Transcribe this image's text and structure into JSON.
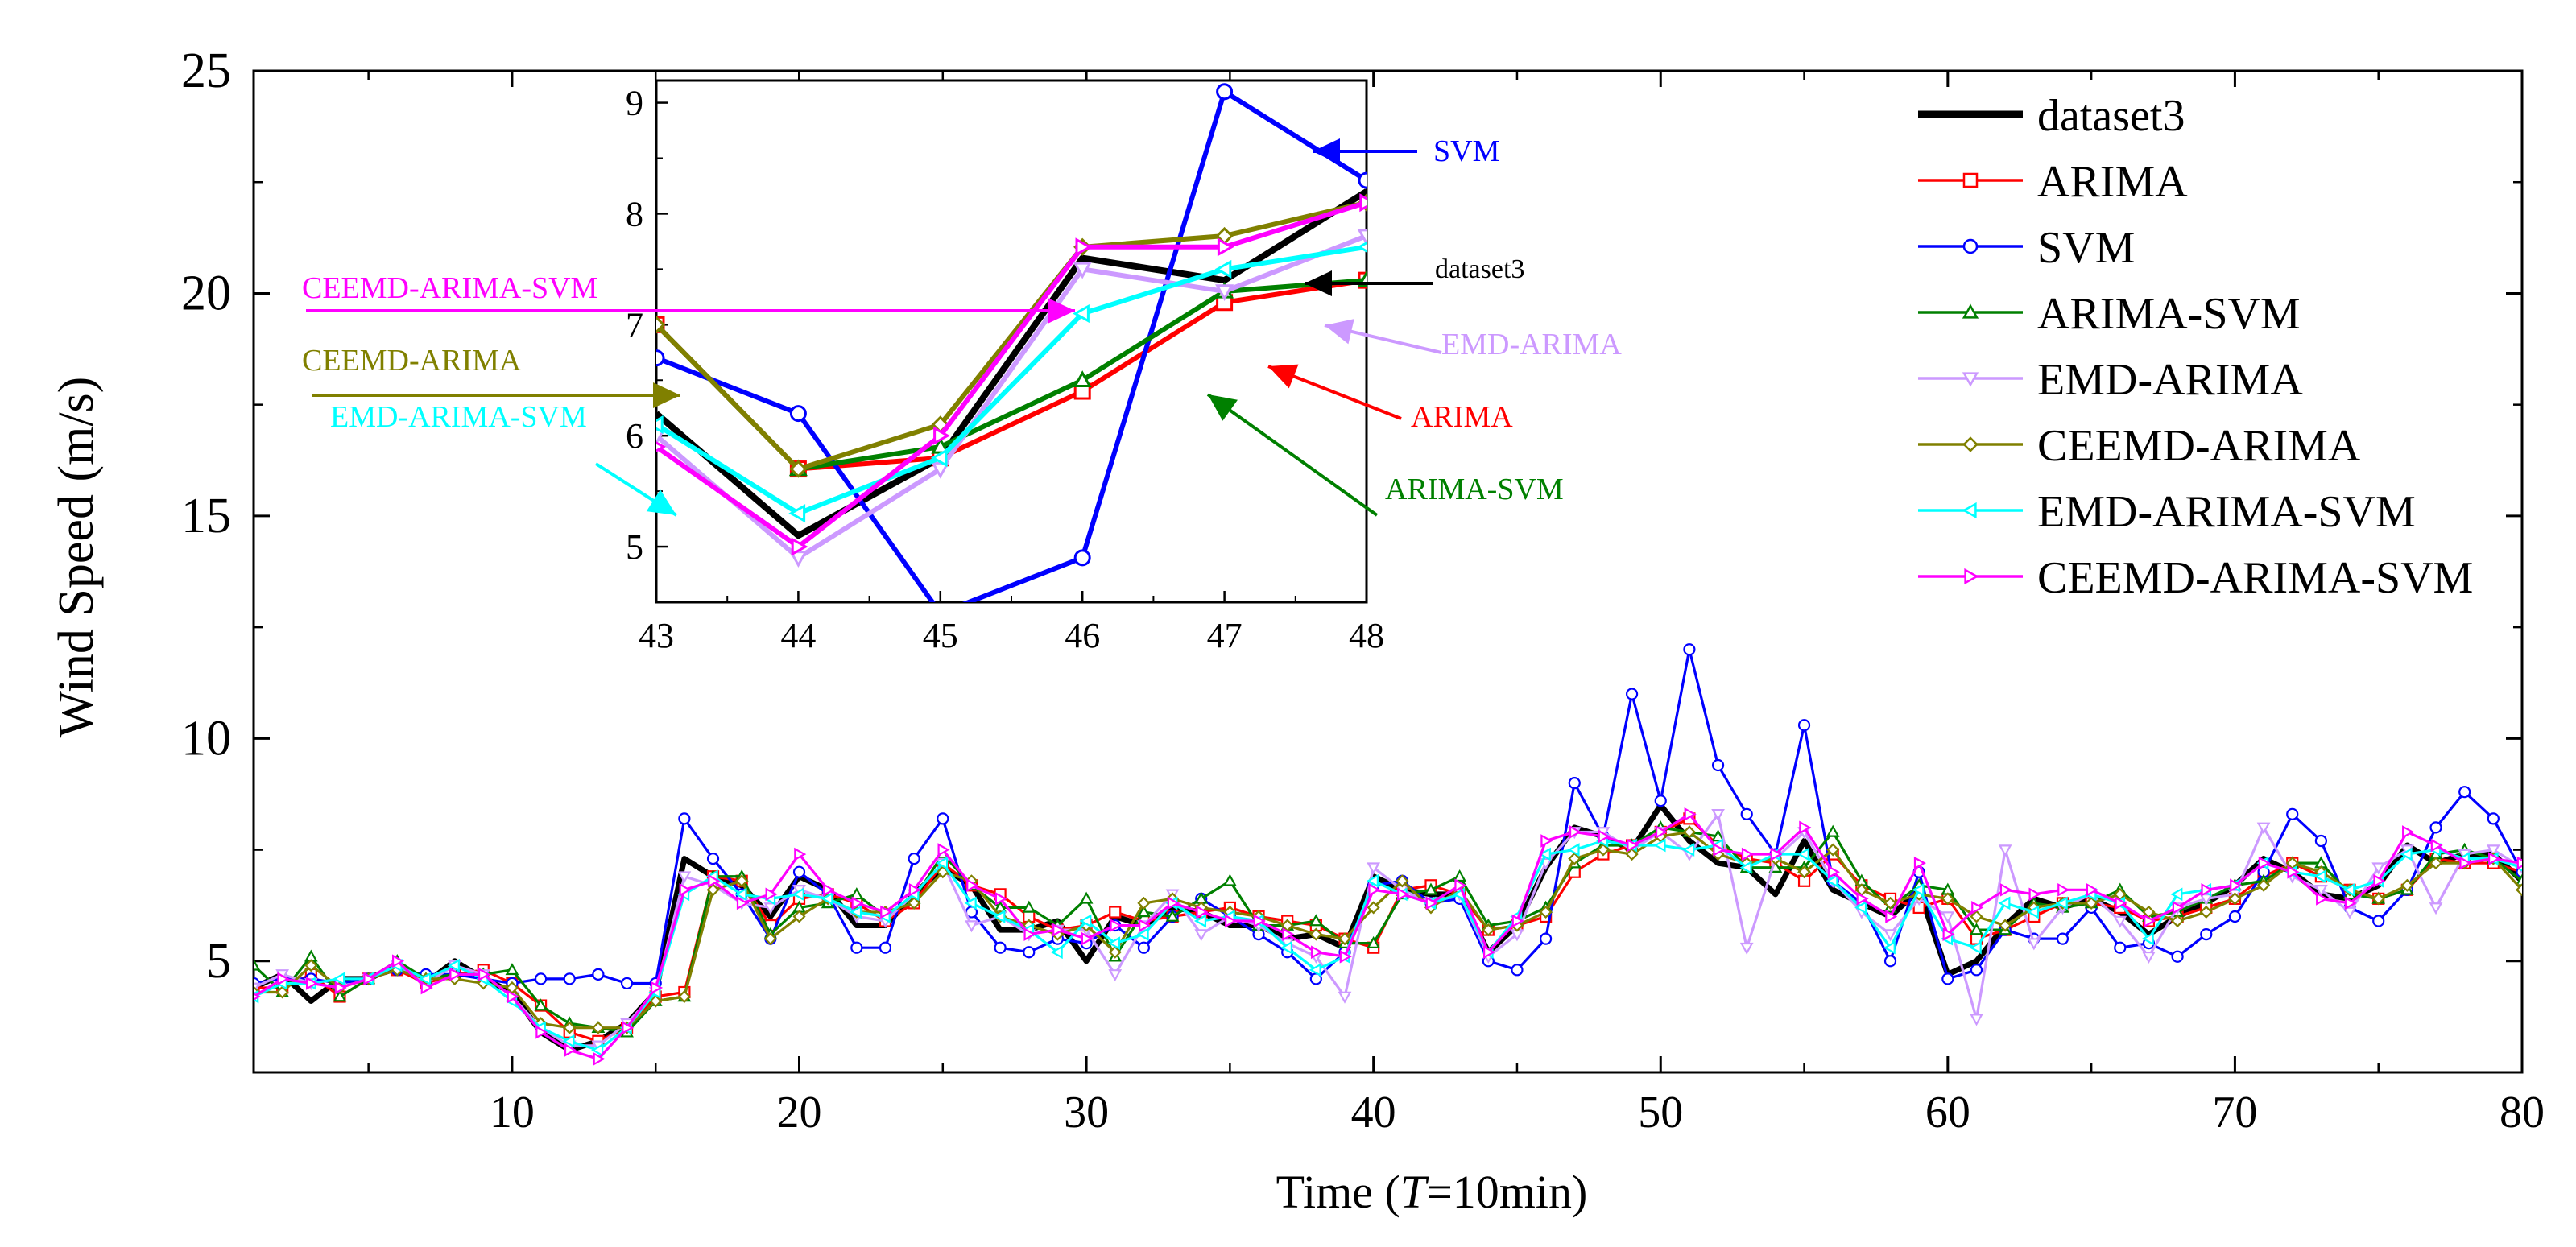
{
  "chart_data": [
    {
      "type": "line",
      "role": "main",
      "xlabel_prefix": "Time (",
      "xlabel_italic": "T",
      "xlabel_suffix": "=10min)",
      "ylabel": "Wind Speed (m/s)",
      "xlim": [
        1,
        80
      ],
      "ylim": [
        2.5,
        25
      ],
      "xticks": [
        10,
        20,
        30,
        40,
        50,
        60,
        70,
        80
      ],
      "yticks": [
        5,
        10,
        15,
        20,
        25
      ],
      "x_start": 1,
      "series": [
        {
          "name": "dataset3",
          "color": "#000000",
          "marker": "none",
          "values": [
            4.4,
            4.7,
            4.1,
            4.6,
            4.6,
            4.9,
            4.5,
            5.0,
            4.6,
            4.3,
            3.4,
            3.0,
            3.2,
            3.6,
            4.3,
            7.3,
            6.9,
            6.7,
            6.0,
            6.9,
            6.6,
            5.8,
            5.8,
            6.5,
            7.1,
            6.7,
            5.7,
            5.7,
            5.9,
            5.0,
            6.0,
            5.8,
            6.2,
            6.1,
            5.8,
            5.8,
            5.5,
            5.6,
            5.3,
            6.9,
            6.6,
            6.5,
            6.5,
            5.2,
            5.8,
            7.1,
            8.0,
            7.8,
            7.5,
            8.5,
            7.7,
            7.2,
            7.1,
            6.5,
            7.7,
            6.6,
            6.3,
            6.0,
            6.6,
            4.7,
            5.0,
            5.8,
            6.4,
            6.2,
            6.4,
            6.1,
            5.6,
            6.0,
            6.3,
            6.7,
            7.3,
            7.0,
            6.5,
            6.4,
            6.7,
            7.6,
            7.2,
            7.4,
            7.4,
            6.8
          ]
        },
        {
          "name": "ARIMA",
          "color": "#ff0000",
          "marker": "square",
          "values": [
            4.4,
            4.4,
            4.7,
            4.2,
            4.6,
            4.8,
            4.5,
            4.7,
            4.8,
            4.5,
            4.0,
            3.4,
            3.2,
            3.5,
            4.2,
            4.3,
            6.9,
            6.8,
            5.8,
            6.4,
            6.5,
            6.3,
            5.9,
            6.3,
            7.2,
            6.7,
            6.5,
            6.0,
            5.7,
            5.8,
            6.1,
            5.9,
            6.0,
            6.1,
            6.2,
            6.0,
            5.9,
            5.8,
            5.5,
            5.3,
            6.6,
            6.7,
            6.5,
            5.7,
            5.8,
            6.0,
            7.0,
            7.4,
            7.6,
            7.9,
            8.2,
            7.6,
            7.3,
            7.2,
            6.8,
            7.4,
            6.7,
            6.4,
            6.2,
            6.4,
            5.5,
            5.7,
            6.0,
            6.3,
            6.3,
            6.2,
            5.9,
            6.0,
            6.2,
            6.4,
            6.9,
            7.2,
            6.9,
            6.6,
            6.4,
            6.6,
            7.3,
            7.2,
            7.2,
            7.0
          ]
        },
        {
          "name": "SVM",
          "color": "#0000ff",
          "marker": "circle",
          "values": [
            4.5,
            4.6,
            4.6,
            4.5,
            4.6,
            4.8,
            4.7,
            4.7,
            4.6,
            4.5,
            4.6,
            4.6,
            4.7,
            4.5,
            4.5,
            8.2,
            7.3,
            6.5,
            5.5,
            7.0,
            6.5,
            5.3,
            5.3,
            7.3,
            8.2,
            6.1,
            5.3,
            5.2,
            5.5,
            5.4,
            5.8,
            5.3,
            6.0,
            6.4,
            6.0,
            5.6,
            5.2,
            4.6,
            5.2,
            6.7,
            6.8,
            6.3,
            6.4,
            5.0,
            4.8,
            5.5,
            9.0,
            7.8,
            11.0,
            8.6,
            12.0,
            9.4,
            8.3,
            7.4,
            10.3,
            6.8,
            6.3,
            5.0,
            7.0,
            4.6,
            4.8,
            5.7,
            5.5,
            5.5,
            6.2,
            5.3,
            5.4,
            5.1,
            5.6,
            6.0,
            7.0,
            8.3,
            7.7,
            6.2,
            5.9,
            6.6,
            8.0,
            8.8,
            8.2,
            7.0
          ]
        },
        {
          "name": "ARIMA-SVM",
          "color": "#008000",
          "marker": "triangle",
          "values": [
            4.9,
            4.3,
            5.1,
            4.2,
            4.6,
            5.0,
            4.6,
            4.7,
            4.7,
            4.8,
            4.0,
            3.6,
            3.5,
            3.4,
            4.1,
            4.2,
            6.9,
            6.9,
            5.6,
            6.2,
            6.3,
            6.5,
            6.0,
            6.4,
            7.4,
            6.7,
            6.2,
            6.2,
            5.8,
            6.4,
            5.1,
            6.1,
            6.0,
            6.4,
            6.8,
            5.8,
            5.8,
            5.9,
            5.4,
            5.4,
            6.5,
            6.6,
            6.9,
            5.8,
            5.9,
            6.2,
            7.2,
            7.6,
            7.6,
            8.0,
            7.9,
            7.8,
            7.1,
            7.1,
            7.1,
            7.9,
            6.8,
            6.2,
            6.7,
            6.6,
            5.7,
            5.7,
            6.3,
            6.2,
            6.3,
            6.6,
            6.0,
            6.1,
            6.4,
            6.7,
            6.8,
            7.2,
            7.2,
            6.5,
            6.4,
            6.6,
            7.4,
            7.5,
            7.3,
            6.8
          ]
        },
        {
          "name": "EMD-ARIMA",
          "color": "#cc99ff",
          "marker": "triangle-down",
          "values": [
            4.4,
            4.7,
            4.5,
            4.4,
            4.6,
            4.9,
            4.5,
            4.9,
            4.7,
            4.2,
            3.5,
            3.1,
            3.1,
            3.6,
            4.3,
            6.9,
            6.7,
            6.3,
            6.2,
            6.6,
            6.4,
            6.0,
            5.9,
            6.5,
            7.2,
            5.8,
            6.0,
            5.6,
            5.7,
            5.7,
            4.7,
            5.8,
            6.5,
            5.6,
            6.0,
            5.8,
            5.4,
            5.1,
            4.2,
            7.1,
            6.6,
            6.3,
            6.5,
            5.1,
            5.6,
            7.2,
            7.9,
            7.9,
            7.5,
            7.9,
            7.4,
            8.3,
            5.3,
            7.3,
            7.9,
            6.8,
            6.1,
            5.6,
            6.4,
            6.0,
            3.7,
            7.5,
            5.4,
            6.2,
            6.5,
            5.9,
            5.1,
            6.2,
            6.4,
            6.5,
            8.0,
            6.9,
            6.6,
            6.1,
            7.1,
            7.5,
            6.2,
            7.4,
            7.5,
            7.1
          ]
        },
        {
          "name": "CEEMD-ARIMA",
          "color": "#808000",
          "marker": "diamond",
          "values": [
            4.3,
            4.3,
            4.9,
            4.4,
            4.6,
            4.8,
            4.6,
            4.6,
            4.5,
            4.4,
            3.6,
            3.5,
            3.5,
            3.5,
            4.1,
            4.2,
            6.6,
            6.8,
            5.5,
            6.0,
            6.4,
            6.1,
            6.1,
            6.3,
            7.0,
            6.8,
            6.0,
            5.8,
            5.6,
            5.8,
            5.2,
            6.3,
            6.4,
            6.2,
            6.1,
            6.0,
            5.8,
            5.6,
            5.5,
            6.2,
            6.8,
            6.2,
            6.6,
            5.7,
            5.8,
            6.1,
            7.3,
            7.5,
            7.4,
            7.8,
            7.9,
            7.4,
            7.2,
            7.3,
            7.0,
            7.5,
            6.6,
            6.3,
            6.5,
            6.4,
            6.0,
            5.8,
            6.2,
            6.3,
            6.3,
            6.5,
            6.1,
            5.9,
            6.1,
            6.4,
            6.7,
            7.2,
            7.0,
            6.6,
            6.4,
            6.7,
            7.2,
            7.2,
            7.3,
            6.6
          ]
        },
        {
          "name": "EMD-ARIMA-SVM",
          "color": "#00ffff",
          "marker": "triangle-left",
          "values": [
            4.2,
            4.5,
            4.5,
            4.6,
            4.6,
            4.9,
            4.6,
            4.9,
            4.6,
            4.1,
            3.5,
            3.2,
            3.0,
            3.5,
            4.3,
            6.5,
            6.9,
            6.5,
            6.4,
            6.5,
            6.4,
            6.1,
            6.0,
            6.5,
            7.2,
            6.3,
            6.0,
            5.7,
            5.2,
            5.9,
            5.4,
            5.6,
            6.3,
            5.9,
            6.0,
            5.9,
            5.3,
            4.8,
            5.1,
            6.8,
            6.5,
            6.3,
            6.5,
            5.2,
            6.0,
            7.4,
            7.5,
            7.7,
            7.6,
            7.6,
            7.5,
            7.6,
            7.1,
            7.4,
            7.4,
            6.8,
            6.2,
            5.3,
            6.6,
            5.5,
            5.3,
            6.3,
            6.1,
            6.3,
            6.5,
            6.3,
            5.5,
            6.5,
            6.6,
            6.7,
            7.2,
            7.0,
            6.9,
            6.6,
            6.8,
            7.4,
            7.5,
            7.3,
            7.3,
            7.1
          ]
        },
        {
          "name": "CEEMD-ARIMA-SVM",
          "color": "#ff00ff",
          "marker": "triangle-right",
          "values": [
            4.2,
            4.6,
            4.5,
            4.4,
            4.6,
            5.0,
            4.4,
            4.7,
            4.7,
            4.2,
            3.4,
            3.0,
            2.8,
            3.5,
            4.4,
            6.6,
            6.8,
            6.3,
            6.5,
            7.4,
            6.6,
            6.3,
            6.1,
            6.6,
            7.5,
            6.7,
            6.4,
            5.6,
            5.7,
            5.5,
            5.8,
            5.8,
            6.3,
            6.1,
            5.9,
            5.9,
            5.6,
            5.2,
            5.1,
            6.6,
            6.5,
            6.3,
            6.7,
            5.2,
            5.9,
            7.7,
            7.9,
            7.8,
            7.6,
            7.9,
            8.3,
            7.5,
            7.4,
            7.4,
            8.0,
            7.0,
            6.4,
            6.0,
            7.2,
            5.6,
            6.2,
            6.6,
            6.5,
            6.6,
            6.6,
            6.3,
            5.9,
            6.2,
            6.6,
            6.7,
            7.2,
            7.0,
            6.4,
            6.3,
            6.8,
            7.9,
            7.6,
            7.2,
            7.3,
            7.2
          ]
        }
      ]
    },
    {
      "type": "line",
      "role": "inset",
      "xlim": [
        43,
        48
      ],
      "ylim": [
        4.5,
        9.2
      ],
      "xticks": [
        43,
        44,
        45,
        46,
        47,
        48
      ],
      "yticks": [
        5,
        6,
        7,
        8,
        9
      ],
      "x": [
        43,
        44,
        45,
        46,
        47,
        48
      ],
      "series": [
        {
          "name": "dataset3",
          "color": "#000000",
          "values": [
            6.2,
            5.1,
            5.8,
            7.6,
            7.4,
            8.2
          ]
        },
        {
          "name": "ARIMA",
          "color": "#ff0000",
          "values": [
            7.0,
            5.7,
            5.8,
            6.4,
            7.2,
            7.4
          ]
        },
        {
          "name": "SVM",
          "color": "#0000ff",
          "values": [
            6.7,
            6.2,
            4.4,
            4.9,
            9.1,
            8.3
          ]
        },
        {
          "name": "ARIMA-SVM",
          "color": "#008000",
          "values": [
            7.0,
            5.7,
            5.9,
            6.5,
            7.3,
            7.4
          ]
        },
        {
          "name": "EMD-ARIMA",
          "color": "#cc99ff",
          "values": [
            6.0,
            4.9,
            5.7,
            7.5,
            7.3,
            7.8
          ]
        },
        {
          "name": "CEEMD-ARIMA",
          "color": "#808000",
          "values": [
            7.0,
            5.7,
            6.1,
            7.7,
            7.8,
            8.1
          ]
        },
        {
          "name": "EMD-ARIMA-SVM",
          "color": "#00ffff",
          "values": [
            6.1,
            5.3,
            5.8,
            7.1,
            7.5,
            7.7
          ]
        },
        {
          "name": "CEEMD-ARIMA-SVM",
          "color": "#ff00ff",
          "values": [
            5.9,
            5.0,
            6.0,
            7.7,
            7.7,
            8.1
          ]
        }
      ],
      "annotations": [
        {
          "text": "SVM",
          "color": "#0000ff"
        },
        {
          "text": "dataset3",
          "color": "#000000"
        },
        {
          "text": "EMD-ARIMA",
          "color": "#cc99ff"
        },
        {
          "text": "ARIMA",
          "color": "#ff0000"
        },
        {
          "text": "ARIMA-SVM",
          "color": "#008000"
        },
        {
          "text": "CEEMD-ARIMA-SVM",
          "color": "#ff00ff"
        },
        {
          "text": "CEEMD-ARIMA",
          "color": "#808000"
        },
        {
          "text": "EMD-ARIMA-SVM",
          "color": "#00ffff"
        }
      ]
    }
  ]
}
